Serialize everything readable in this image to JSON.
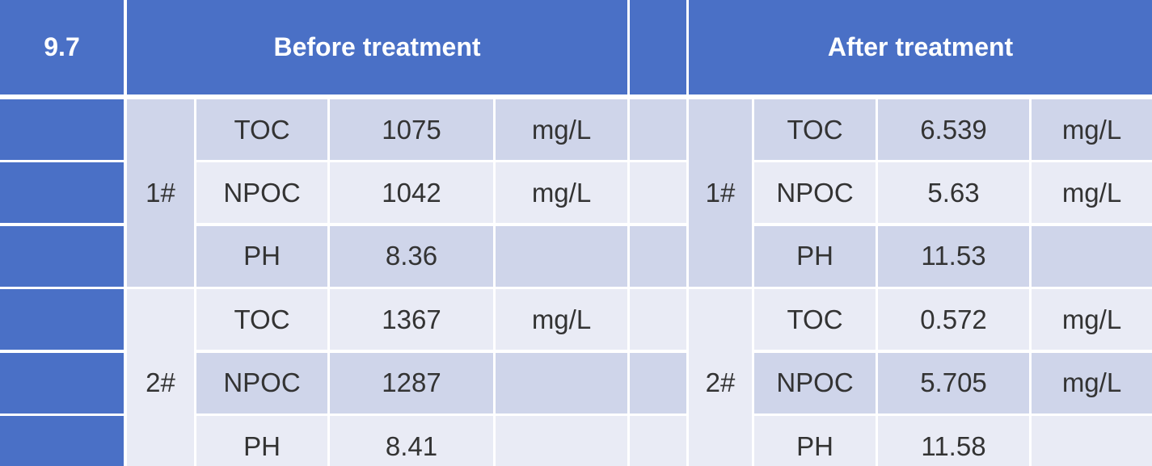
{
  "header": {
    "label": "9.7",
    "before": "Before treatment",
    "after": "After treatment"
  },
  "groups": [
    {
      "label": "1#",
      "before": [
        {
          "param": "TOC",
          "value": 1075,
          "unit": "mg/L"
        },
        {
          "param": "NPOC",
          "value": 1042,
          "unit": "mg/L"
        },
        {
          "param": "PH",
          "value": 8.36
        }
      ],
      "after": [
        {
          "param": "TOC",
          "value": 6.539,
          "unit": "mg/L"
        },
        {
          "param": "NPOC",
          "value": 5.63,
          "unit": "mg/L"
        },
        {
          "param": "PH",
          "value": 11.53
        }
      ]
    },
    {
      "label": "2#",
      "before": [
        {
          "param": "TOC",
          "value": 1367,
          "unit": "mg/L"
        },
        {
          "param": "NPOC",
          "value": 1287
        },
        {
          "param": "PH",
          "value": 8.41
        }
      ],
      "after": [
        {
          "param": "TOC",
          "value": 0.572,
          "unit": "mg/L"
        },
        {
          "param": "NPOC",
          "value": 5.705,
          "unit": "mg/L"
        },
        {
          "param": "PH",
          "value": 11.58
        }
      ]
    }
  ]
}
